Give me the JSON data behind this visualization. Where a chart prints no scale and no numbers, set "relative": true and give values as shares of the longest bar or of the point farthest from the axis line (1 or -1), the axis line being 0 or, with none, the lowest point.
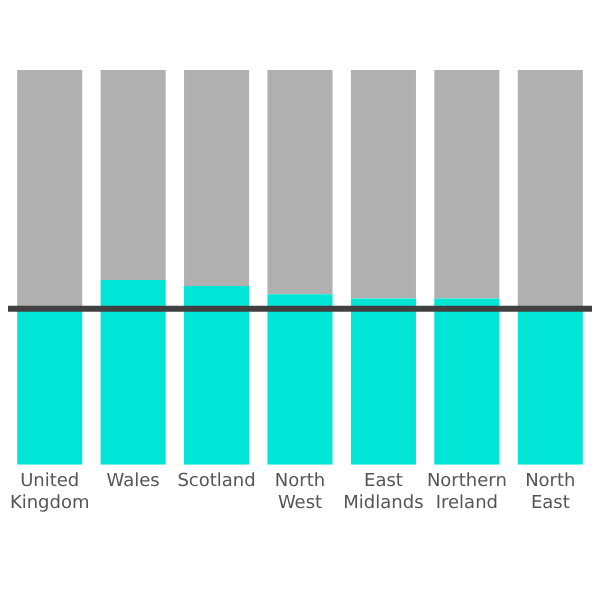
{
  "chart_data": {
    "type": "bar",
    "relative": true,
    "stacked": true,
    "categories": [
      "United Kingdom",
      "Wales",
      "Scotland",
      "North West",
      "East Midlands",
      "Northern Ireland",
      "North East"
    ],
    "series": [
      {
        "color": "#00e5d6",
        "values": [
          0.395,
          0.468,
          0.453,
          0.432,
          0.421,
          0.421,
          0.395
        ]
      },
      {
        "color": "#b0b0b0",
        "values": [
          0.605,
          0.532,
          0.547,
          0.568,
          0.579,
          0.579,
          0.605
        ]
      }
    ],
    "ref_lines": [
      {
        "axis": "y",
        "value": 0.395,
        "color": "#404040"
      }
    ],
    "grid": false,
    "legend": false
  }
}
